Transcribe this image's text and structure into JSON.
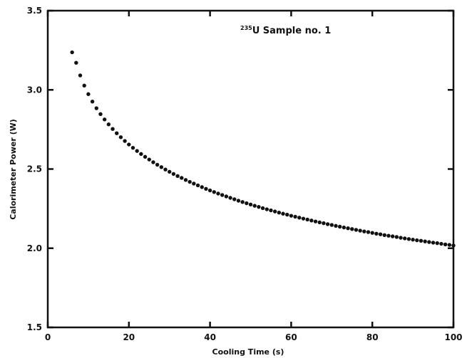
{
  "chart_data": {
    "type": "scatter",
    "title": "",
    "xlabel": "Cooling Time (s)",
    "ylabel": "Calorimeter Power (W)",
    "xlim": [
      0,
      100
    ],
    "ylim": [
      1.5,
      3.5
    ],
    "xticks": [
      0,
      20,
      40,
      60,
      80,
      100
    ],
    "xtick_labels": [
      "0",
      "20",
      "40",
      "60",
      "80",
      "100"
    ],
    "yticks": [
      1.5,
      2.0,
      2.5,
      3.0,
      3.5
    ],
    "ytick_labels": [
      "1.5",
      "2.0",
      "2.5",
      "3.0",
      "3.5"
    ],
    "grid": false,
    "annotation": {
      "superscript": "235",
      "text": "U Sample no. 1"
    },
    "series": [
      {
        "marker_color": "#111111",
        "x": [
          6,
          7,
          8,
          9,
          10,
          11,
          12,
          13,
          14,
          15,
          16,
          17,
          18,
          19,
          20,
          21,
          22,
          23,
          24,
          25,
          26,
          27,
          28,
          29,
          30,
          31,
          32,
          33,
          34,
          35,
          36,
          37,
          38,
          39,
          40,
          41,
          42,
          43,
          44,
          45,
          46,
          47,
          48,
          49,
          50,
          51,
          52,
          53,
          54,
          55,
          56,
          57,
          58,
          59,
          60,
          61,
          62,
          63,
          64,
          65,
          66,
          67,
          68,
          69,
          70,
          71,
          72,
          73,
          74,
          75,
          76,
          77,
          78,
          79,
          80,
          81,
          82,
          83,
          84,
          85,
          86,
          87,
          88,
          89,
          90,
          91,
          92,
          93,
          94,
          95,
          96,
          97,
          98,
          99,
          100
        ],
        "y": [
          3.237,
          3.171,
          3.091,
          3.027,
          2.973,
          2.926,
          2.884,
          2.847,
          2.813,
          2.782,
          2.753,
          2.726,
          2.701,
          2.677,
          2.655,
          2.634,
          2.614,
          2.595,
          2.577,
          2.56,
          2.543,
          2.527,
          2.512,
          2.497,
          2.483,
          2.469,
          2.456,
          2.444,
          2.431,
          2.419,
          2.408,
          2.397,
          2.386,
          2.375,
          2.365,
          2.355,
          2.345,
          2.336,
          2.327,
          2.318,
          2.309,
          2.3,
          2.292,
          2.284,
          2.276,
          2.268,
          2.261,
          2.253,
          2.246,
          2.239,
          2.232,
          2.225,
          2.218,
          2.212,
          2.205,
          2.199,
          2.193,
          2.187,
          2.181,
          2.175,
          2.169,
          2.163,
          2.158,
          2.152,
          2.147,
          2.141,
          2.136,
          2.131,
          2.126,
          2.121,
          2.116,
          2.111,
          2.106,
          2.102,
          2.097,
          2.092,
          2.088,
          2.083,
          2.079,
          2.075,
          2.071,
          2.066,
          2.062,
          2.058,
          2.054,
          2.05,
          2.047,
          2.043,
          2.039,
          2.035,
          2.032,
          2.028,
          2.024,
          2.021,
          2.017
        ]
      }
    ]
  }
}
